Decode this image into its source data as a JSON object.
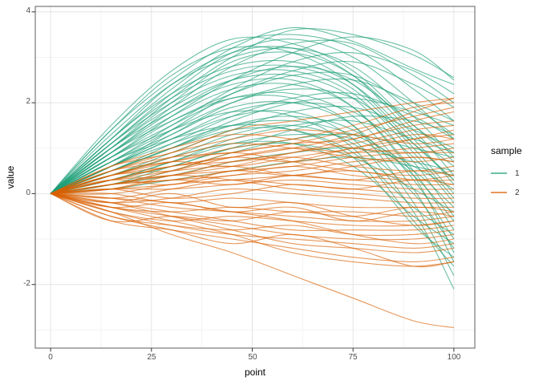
{
  "figure": {
    "xlabel": "point",
    "ylabel": "value",
    "x_tick_labels": [
      "0",
      "25",
      "50",
      "75",
      "100"
    ],
    "y_tick_labels": [
      "4",
      "2",
      "0",
      "-2"
    ],
    "legend_title": "sample",
    "legend_labels": [
      "1",
      "2"
    ]
  },
  "style": {
    "teal": "#1b9e77",
    "orange": "#d95f02",
    "grid_major": "#e4e4e4",
    "grid_minor": "#f3f3f3",
    "panel_border": "#777777",
    "tick_color": "#333333",
    "tick_label_color": "#4d4d4d",
    "axis_title_color": "#000000",
    "panel_bg": "#ffffff"
  },
  "chart_data": {
    "type": "line",
    "title": "",
    "xlabel": "point",
    "ylabel": "value",
    "x_ticks": [
      0,
      25,
      50,
      75,
      100
    ],
    "y_ticks": [
      -2,
      0,
      2,
      4
    ],
    "x_minor_ticks": [
      12.5,
      37.5,
      62.5,
      87.5
    ],
    "y_minor_ticks": [
      -3,
      -1,
      1,
      3
    ],
    "xlim": [
      -3.8,
      105.2
    ],
    "ylim": [
      -3.4,
      4.12
    ],
    "grid": "major+minor",
    "legend": {
      "title": "sample",
      "position": "right",
      "entries": [
        {
          "label": "1",
          "color": "#1b9e77"
        },
        {
          "label": "2",
          "color": "#d95f02"
        }
      ]
    },
    "line_alpha": 0.65,
    "line_width": 1.1,
    "x": [
      0,
      15,
      30,
      45,
      60,
      75,
      90,
      100
    ],
    "series": [
      {
        "name": "1",
        "color": "#1b9e77",
        "lines": [
          [
            0,
            1.0,
            2.1,
            3.0,
            3.6,
            3.5,
            3.05,
            2.55
          ],
          [
            0,
            1.2,
            2.3,
            3.2,
            3.65,
            3.35,
            2.75,
            2.4
          ],
          [
            0,
            0.8,
            1.7,
            2.5,
            3.1,
            3.45,
            3.15,
            2.5
          ],
          [
            0,
            1.4,
            2.5,
            3.3,
            3.5,
            3.2,
            2.3,
            1.6
          ],
          [
            0,
            1.1,
            2.2,
            3.1,
            3.4,
            3.0,
            2.0,
            1.2
          ],
          [
            0,
            0.9,
            1.9,
            2.8,
            3.3,
            3.3,
            2.6,
            2.0
          ],
          [
            0,
            1.3,
            2.4,
            3.0,
            3.2,
            2.8,
            1.7,
            0.8
          ],
          [
            0,
            1.0,
            2.0,
            2.9,
            3.1,
            2.6,
            1.4,
            0.4
          ],
          [
            0,
            0.7,
            1.5,
            2.3,
            2.9,
            3.1,
            2.7,
            2.2
          ],
          [
            0,
            1.2,
            2.2,
            2.8,
            2.9,
            2.4,
            1.2,
            0.2
          ],
          [
            0,
            0.9,
            1.8,
            2.5,
            2.8,
            2.5,
            1.5,
            0.7
          ],
          [
            0,
            1.1,
            2.0,
            2.6,
            2.7,
            2.2,
            0.9,
            -0.1
          ],
          [
            0,
            0.8,
            1.6,
            2.2,
            2.6,
            2.6,
            1.9,
            1.3
          ],
          [
            0,
            1.0,
            1.9,
            2.5,
            2.6,
            2.1,
            0.7,
            -0.5
          ],
          [
            0,
            0.6,
            1.3,
            2.0,
            2.4,
            2.5,
            2.0,
            1.6
          ],
          [
            0,
            0.9,
            1.7,
            2.3,
            2.4,
            1.9,
            0.5,
            -0.8
          ],
          [
            0,
            0.7,
            1.4,
            2.0,
            2.3,
            2.1,
            1.1,
            0.3
          ],
          [
            0,
            1.1,
            2.1,
            2.7,
            2.8,
            2.3,
            1.0,
            0.0
          ],
          [
            0,
            0.5,
            1.1,
            1.7,
            2.1,
            2.2,
            1.7,
            1.2
          ],
          [
            0,
            0.8,
            1.5,
            2.1,
            2.2,
            1.7,
            0.3,
            -1.0
          ],
          [
            0,
            0.6,
            1.2,
            1.8,
            2.0,
            1.8,
            0.8,
            -0.2
          ],
          [
            0,
            1.0,
            1.8,
            2.4,
            2.5,
            1.9,
            0.4,
            -1.3
          ],
          [
            0,
            0.4,
            0.9,
            1.4,
            1.8,
            1.9,
            1.4,
            1.0
          ],
          [
            0,
            0.7,
            1.3,
            1.9,
            2.0,
            1.5,
            0.1,
            -1.5
          ],
          [
            0,
            0.5,
            1.0,
            1.5,
            1.7,
            1.4,
            0.4,
            -0.6
          ],
          [
            0,
            0.9,
            1.6,
            2.1,
            2.1,
            1.5,
            -0.2,
            -1.8
          ],
          [
            0,
            0.3,
            0.7,
            1.2,
            1.5,
            1.6,
            1.2,
            0.9
          ],
          [
            0,
            0.6,
            1.2,
            1.7,
            1.8,
            1.2,
            -0.4,
            -2.1
          ],
          [
            0,
            0.4,
            0.8,
            1.3,
            1.5,
            1.1,
            0.0,
            -1.2
          ],
          [
            0,
            0.8,
            1.4,
            1.8,
            1.7,
            1.0,
            -0.6,
            -1.6
          ],
          [
            0,
            0.2,
            0.5,
            0.9,
            1.2,
            1.3,
            1.0,
            0.8
          ],
          [
            0,
            0.5,
            1.0,
            1.4,
            1.4,
            0.9,
            -0.3,
            -0.9
          ],
          [
            0,
            0.3,
            0.6,
            1.0,
            1.1,
            0.8,
            0.1,
            -0.4
          ],
          [
            0,
            0.7,
            1.2,
            1.5,
            1.4,
            0.8,
            -0.7,
            -1.4
          ],
          [
            0,
            0.2,
            0.4,
            0.7,
            0.9,
            1.0,
            0.7,
            0.5
          ],
          [
            0,
            0.4,
            0.8,
            1.1,
            1.1,
            0.6,
            -0.5,
            -1.1
          ],
          [
            0,
            1.5,
            2.7,
            3.4,
            3.3,
            2.7,
            1.5,
            0.9
          ],
          [
            0,
            0.1,
            0.3,
            0.5,
            0.7,
            0.8,
            0.6,
            0.4
          ],
          [
            0,
            0.6,
            1.1,
            1.5,
            1.6,
            1.3,
            0.6,
            0.1
          ],
          [
            0,
            1.2,
            2.4,
            3.1,
            3.2,
            2.6,
            1.3,
            0.6
          ],
          [
            0,
            0.3,
            0.7,
            1.1,
            1.3,
            1.2,
            0.5,
            -0.3
          ],
          [
            0,
            0.5,
            1.0,
            1.6,
            2.0,
            2.1,
            1.8,
            1.5
          ],
          [
            0,
            0.2,
            0.6,
            1.0,
            1.4,
            1.7,
            1.6,
            1.3
          ],
          [
            0,
            1.4,
            2.6,
            3.2,
            3.1,
            2.4,
            1.1,
            0.3
          ],
          [
            0,
            0.6,
            1.4,
            2.2,
            2.7,
            2.9,
            2.4,
            1.9
          ]
        ]
      },
      {
        "name": "2",
        "color": "#d95f02",
        "lines": [
          [
            0,
            0.3,
            0.6,
            0.8,
            1.0,
            1.3,
            1.8,
            2.1
          ],
          [
            0,
            0.4,
            0.7,
            1.0,
            1.2,
            1.5,
            1.9,
            2.0
          ],
          [
            0,
            0.2,
            0.5,
            0.9,
            1.1,
            1.4,
            1.7,
            1.9
          ],
          [
            0,
            0.5,
            0.8,
            0.9,
            1.1,
            1.2,
            1.6,
            1.8
          ],
          [
            0,
            0.3,
            0.4,
            0.7,
            0.9,
            1.2,
            1.5,
            1.6
          ],
          [
            0,
            0.1,
            0.4,
            0.6,
            0.9,
            1.1,
            1.4,
            1.5
          ],
          [
            0,
            0.4,
            0.6,
            0.8,
            0.7,
            0.9,
            1.2,
            1.4
          ],
          [
            0,
            0.2,
            0.3,
            0.5,
            0.7,
            1.0,
            1.2,
            1.3
          ],
          [
            0,
            0.5,
            0.9,
            1.2,
            1.4,
            1.3,
            1.1,
            1.2
          ],
          [
            0,
            0.3,
            0.5,
            0.8,
            1.0,
            0.9,
            1.0,
            1.1
          ],
          [
            0,
            0.6,
            1.0,
            1.3,
            1.2,
            1.0,
            0.9,
            1.0
          ],
          [
            0,
            0.2,
            0.4,
            0.5,
            0.6,
            0.8,
            0.9,
            0.9
          ],
          [
            0,
            0.4,
            0.8,
            1.1,
            1.0,
            0.8,
            0.7,
            0.8
          ],
          [
            0,
            0.1,
            0.2,
            0.4,
            0.5,
            0.7,
            0.8,
            0.7
          ],
          [
            0,
            0.3,
            0.6,
            0.7,
            0.8,
            0.6,
            0.5,
            0.6
          ],
          [
            0,
            0.5,
            0.7,
            0.9,
            0.7,
            0.5,
            0.4,
            0.5
          ],
          [
            0,
            0.2,
            0.3,
            0.4,
            0.6,
            0.4,
            0.3,
            0.4
          ],
          [
            0,
            0.0,
            0.2,
            0.3,
            0.4,
            0.5,
            0.3,
            0.3
          ],
          [
            0,
            0.4,
            0.5,
            0.6,
            0.4,
            0.3,
            0.2,
            0.2
          ],
          [
            0,
            0.1,
            0.1,
            0.2,
            0.3,
            0.2,
            0.1,
            0.1
          ],
          [
            0,
            -0.1,
            0.1,
            0.3,
            0.2,
            0.1,
            0.0,
            0.0
          ],
          [
            0,
            0.2,
            0.4,
            0.3,
            0.1,
            0.0,
            -0.1,
            -0.1
          ],
          [
            0,
            -0.2,
            -0.1,
            0.1,
            0.0,
            -0.1,
            -0.2,
            -0.2
          ],
          [
            0,
            0.0,
            -0.2,
            -0.1,
            -0.2,
            -0.3,
            -0.3,
            -0.3
          ],
          [
            0,
            -0.3,
            -0.4,
            -0.3,
            -0.4,
            -0.4,
            -0.5,
            -0.4
          ],
          [
            0,
            -0.1,
            -0.3,
            -0.4,
            -0.5,
            -0.6,
            -0.6,
            -0.5
          ],
          [
            0,
            -0.4,
            -0.6,
            -0.5,
            -0.6,
            -0.7,
            -0.7,
            -0.6
          ],
          [
            0,
            -0.2,
            -0.4,
            -0.6,
            -0.8,
            -0.8,
            -0.8,
            -0.7
          ],
          [
            0,
            -0.5,
            -0.7,
            -0.8,
            -0.7,
            -0.9,
            -0.9,
            -0.8
          ],
          [
            0,
            -0.3,
            -0.5,
            -0.7,
            -0.9,
            -1.0,
            -1.0,
            -0.9
          ],
          [
            0,
            -0.1,
            -0.2,
            -0.4,
            -0.6,
            -0.9,
            -1.1,
            -1.0
          ],
          [
            0,
            -0.4,
            -0.7,
            -0.9,
            -1.0,
            -1.1,
            -1.2,
            -1.1
          ],
          [
            0,
            -0.2,
            -0.5,
            -0.8,
            -1.1,
            -1.2,
            -1.3,
            -1.2
          ],
          [
            0,
            -0.6,
            -0.8,
            -1.0,
            -1.2,
            -1.4,
            -1.5,
            -1.4
          ],
          [
            0,
            -0.3,
            -0.6,
            -0.9,
            -1.3,
            -1.5,
            -1.6,
            -1.5
          ],
          [
            0,
            -0.4,
            -0.9,
            -1.3,
            -1.8,
            -2.3,
            -2.8,
            -2.95
          ],
          [
            0,
            0.6,
            0.9,
            1.4,
            1.6,
            1.8,
            2.0,
            2.1
          ],
          [
            0,
            -0.6,
            -0.5,
            -0.6,
            -0.4,
            -0.5,
            -0.3,
            -0.4
          ],
          [
            0,
            0.1,
            -0.1,
            0.0,
            0.2,
            0.1,
            0.3,
            0.2
          ],
          [
            0,
            -0.2,
            0.0,
            -0.3,
            -0.2,
            -0.5,
            -0.7,
            -0.6
          ],
          [
            0,
            0.3,
            0.2,
            0.5,
            0.4,
            0.6,
            0.8,
            0.7
          ],
          [
            0,
            -0.5,
            -0.8,
            -1.1,
            -0.9,
            -1.2,
            -1.6,
            -1.5
          ],
          [
            0,
            0.1,
            0.3,
            0.2,
            0.4,
            0.3,
            0.5,
            0.4
          ],
          [
            0,
            -0.3,
            -0.2,
            -0.4,
            -0.3,
            -0.6,
            -0.4,
            -0.5
          ],
          [
            0,
            0.4,
            0.7,
            0.6,
            0.8,
            1.0,
            1.3,
            1.2
          ]
        ]
      }
    ]
  }
}
